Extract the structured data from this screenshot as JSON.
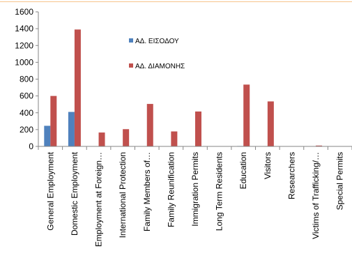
{
  "chart_data": {
    "type": "bar",
    "categories": [
      "General Employment",
      "Domestic Employment",
      "Employment at Foreign…",
      "International Protection",
      "Family Members of…",
      "Family Reunification",
      "Immigration Permits",
      "Long Term Residents",
      "Education",
      "Visitors",
      "Researchers",
      "Victims of Trafficking/…",
      "Special Permits"
    ],
    "series": [
      {
        "name": "ΑΔ. ΕΙΣΟΔΟΥ",
        "color": "#4f81bd",
        "values": [
          245,
          410,
          0,
          0,
          0,
          0,
          0,
          0,
          5,
          0,
          0,
          0,
          0
        ]
      },
      {
        "name": "ΑΔ. ΔΙΑΜΟΝΗΣ",
        "color": "#c0504d",
        "values": [
          600,
          1390,
          165,
          205,
          505,
          178,
          415,
          0,
          735,
          535,
          0,
          10,
          0
        ]
      }
    ],
    "ylim": [
      0,
      1600
    ],
    "yticks": [
      0,
      200,
      400,
      600,
      800,
      1000,
      1200,
      1400,
      1600
    ],
    "grid": false,
    "legend_position": "inside-top-center"
  }
}
